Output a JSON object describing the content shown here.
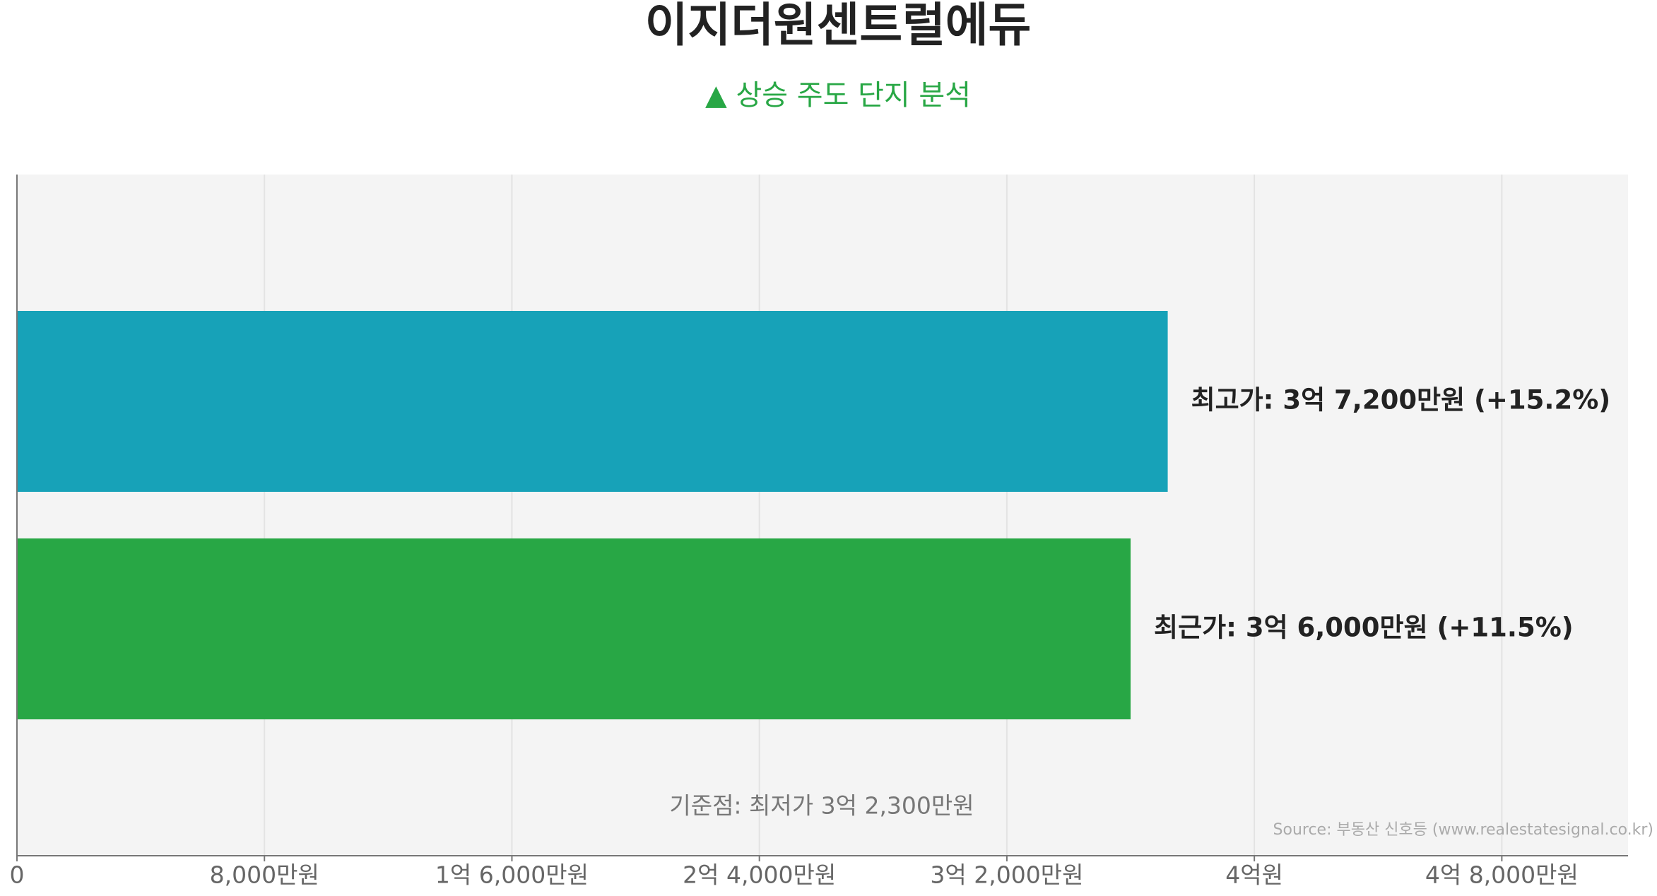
{
  "chart_data": {
    "type": "hbar",
    "title": "이지더원센트럴에듀",
    "subtitle": "▲ 상승 주도 단지 분석",
    "series": [
      {
        "color": "#17a2b8",
        "values": [
          37200,
          36000
        ]
      }
    ],
    "colors": [
      "#17a2b8",
      "#28a745"
    ],
    "value_labels": [
      "최고가: 3억 7,200만원 (+15.2%)",
      "최근가: 3억 6,000만원 (+11.5%)"
    ],
    "xlim": [
      0,
      52080
    ],
    "xticks": [
      0,
      {
        "value": 8000,
        "label": "8,000만원"
      },
      {
        "value": 16000,
        "label": "1억 6,000만원"
      },
      {
        "value": 24000,
        "label": "2억 4,000만원"
      },
      {
        "value": 32000,
        "label": "3억 2,000만원"
      },
      {
        "value": 40000,
        "label": "4억원"
      },
      {
        "value": 48000,
        "label": "4억 8,000만원"
      }
    ],
    "grid": true,
    "annotation": "기준점: 최저가 3억 2,300만원",
    "source": "Source: 부동산 신호등 (www.realestatesignal.co.kr)"
  }
}
